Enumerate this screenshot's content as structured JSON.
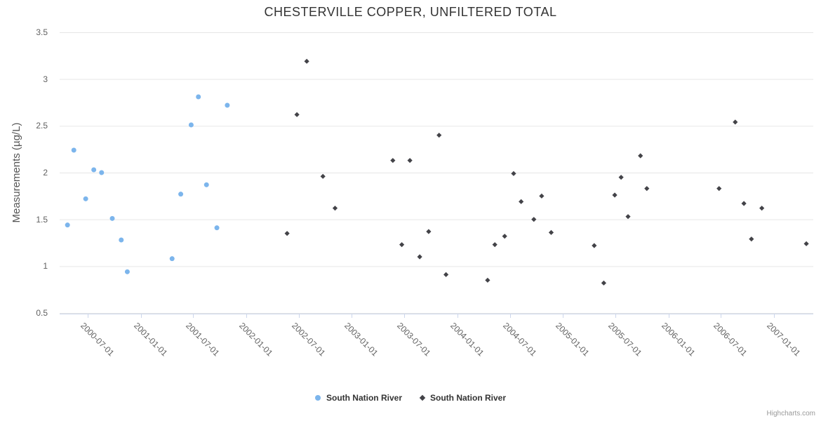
{
  "title": "CHESTERVILLE COPPER, UNFILTERED TOTAL",
  "y_axis": {
    "title": "Measurements (µg/L)",
    "ticks": [
      0.5,
      1,
      1.5,
      2,
      2.5,
      3,
      3.5
    ]
  },
  "x_axis": {
    "tick_labels": [
      "2000-07-01",
      "2001-01-01",
      "2001-07-01",
      "2002-01-01",
      "2002-07-01",
      "2003-01-01",
      "2003-07-01",
      "2004-01-01",
      "2004-07-01",
      "2005-01-01",
      "2005-07-01",
      "2006-01-01",
      "2006-07-01",
      "2007-01-01"
    ]
  },
  "legend": {
    "items": [
      {
        "label": "South Nation River",
        "marker": "circle",
        "color": "#7cb5ec"
      },
      {
        "label": "South Nation River",
        "marker": "diamond",
        "color": "#434348"
      }
    ]
  },
  "credits": "Highcharts.com",
  "chart_data": {
    "type": "scatter",
    "title": "CHESTERVILLE COPPER, UNFILTERED TOTAL",
    "xlabel": "",
    "ylabel": "Measurements (µg/L)",
    "ylim": [
      0.5,
      3.5
    ],
    "xlim": [
      "2000-03-01",
      "2007-06-01"
    ],
    "grid": true,
    "legend_position": "bottom",
    "series": [
      {
        "name": "South Nation River",
        "marker": "circle",
        "color": "#7cb5ec",
        "points": [
          [
            "2000-04-22",
            1.44
          ],
          [
            "2000-05-14",
            2.24
          ],
          [
            "2000-06-24",
            1.72
          ],
          [
            "2000-07-22",
            2.03
          ],
          [
            "2000-08-18",
            2.0
          ],
          [
            "2000-09-24",
            1.51
          ],
          [
            "2000-10-25",
            1.28
          ],
          [
            "2000-11-15",
            0.94
          ],
          [
            "2001-04-19",
            1.08
          ],
          [
            "2001-05-19",
            1.77
          ],
          [
            "2001-06-24",
            2.51
          ],
          [
            "2001-07-19",
            2.81
          ],
          [
            "2001-08-16",
            1.87
          ],
          [
            "2001-09-21",
            1.41
          ],
          [
            "2001-10-27",
            2.72
          ]
        ]
      },
      {
        "name": "South Nation River",
        "marker": "diamond",
        "color": "#434348",
        "points": [
          [
            "2002-05-22",
            1.35
          ],
          [
            "2002-06-25",
            2.62
          ],
          [
            "2002-07-29",
            3.19
          ],
          [
            "2002-09-23",
            1.96
          ],
          [
            "2002-11-04",
            1.62
          ],
          [
            "2003-05-23",
            2.13
          ],
          [
            "2003-06-23",
            1.23
          ],
          [
            "2003-07-21",
            2.13
          ],
          [
            "2003-08-24",
            1.1
          ],
          [
            "2003-09-24",
            1.37
          ],
          [
            "2003-10-30",
            2.4
          ],
          [
            "2003-11-23",
            0.91
          ],
          [
            "2004-04-15",
            0.85
          ],
          [
            "2004-05-10",
            1.23
          ],
          [
            "2004-06-13",
            1.32
          ],
          [
            "2004-07-14",
            1.99
          ],
          [
            "2004-08-09",
            1.69
          ],
          [
            "2004-09-22",
            1.5
          ],
          [
            "2004-10-19",
            1.75
          ],
          [
            "2004-11-21",
            1.36
          ],
          [
            "2005-04-19",
            1.22
          ],
          [
            "2005-05-22",
            0.82
          ],
          [
            "2005-06-29",
            1.76
          ],
          [
            "2005-07-21",
            1.95
          ],
          [
            "2005-08-14",
            1.53
          ],
          [
            "2005-09-26",
            2.18
          ],
          [
            "2005-10-18",
            1.83
          ],
          [
            "2006-06-25",
            1.83
          ],
          [
            "2006-08-20",
            2.54
          ],
          [
            "2006-09-19",
            1.67
          ],
          [
            "2006-10-15",
            1.29
          ],
          [
            "2006-11-20",
            1.62
          ],
          [
            "2007-04-23",
            1.24
          ]
        ]
      }
    ]
  }
}
